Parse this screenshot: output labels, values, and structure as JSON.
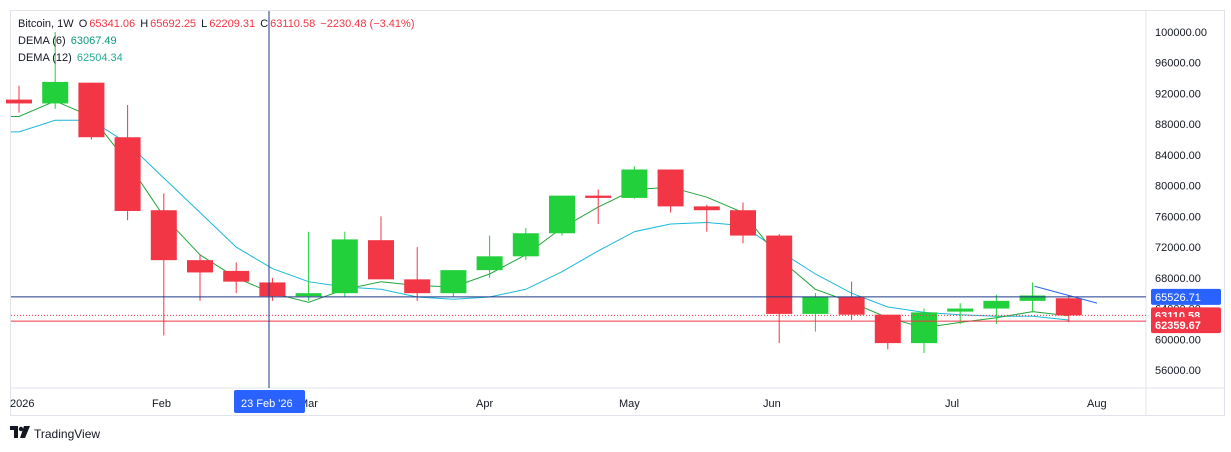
{
  "legend": {
    "symbol": "Bitcoin, 1W",
    "o_label": "O",
    "o_value": "65341.06",
    "h_label": "H",
    "h_value": "65692.25",
    "l_label": "L",
    "l_value": "62209.31",
    "c_label": "C",
    "c_value": "63110.58",
    "change": "−2230.48 (−3.41%)",
    "dema6_label": "DEMA (6)",
    "dema6_value": "63067.49",
    "dema12_label": "DEMA (12)",
    "dema12_value": "62504.34"
  },
  "crosshair": {
    "date_label": "23 Feb '26",
    "price_label": "65526.71",
    "price": 65526.71
  },
  "price_tags": [
    {
      "label": "63110.58",
      "price": 63110.58,
      "color": "#f23645"
    },
    {
      "label": "62359.67",
      "price": 62359.67,
      "color": "#f23645"
    }
  ],
  "footer": {
    "brand": "TradingView",
    "logo": "tv-logo-icon"
  },
  "colors": {
    "up": "#22d03b",
    "down": "#f23645",
    "dema6": "#22a53a",
    "dema12": "#1ab8d8",
    "crosshair": "#2962ff"
  },
  "chart_data": {
    "type": "candlestick",
    "title": "Bitcoin, 1W",
    "ylim": [
      53000,
      103000
    ],
    "yticks": [
      "100000.00",
      "96000.00",
      "92000.00",
      "88000.00",
      "84000.00",
      "80000.00",
      "76000.00",
      "72000.00",
      "68000.00",
      "64000.00",
      "60000.00",
      "56000.00"
    ],
    "xticks": [
      "2026",
      "Feb",
      "Mar",
      "Apr",
      "May",
      "Jun",
      "Jul",
      "Aug"
    ],
    "candles": [
      {
        "o": 91200,
        "h": 93000,
        "l": 89500,
        "c": 90700
      },
      {
        "o": 90700,
        "h": 100000,
        "l": 90000,
        "c": 93500
      },
      {
        "o": 93400,
        "h": 93400,
        "l": 86000,
        "c": 86300
      },
      {
        "o": 86300,
        "h": 90500,
        "l": 75500,
        "c": 76700
      },
      {
        "o": 76800,
        "h": 79000,
        "l": 60500,
        "c": 70300
      },
      {
        "o": 70300,
        "h": 71000,
        "l": 65000,
        "c": 68700
      },
      {
        "o": 68900,
        "h": 70000,
        "l": 66000,
        "c": 67500
      },
      {
        "o": 67400,
        "h": 68000,
        "l": 65000,
        "c": 65600
      },
      {
        "o": 65600,
        "h": 74000,
        "l": 65000,
        "c": 66000
      },
      {
        "o": 66000,
        "h": 74000,
        "l": 65500,
        "c": 73000
      },
      {
        "o": 72900,
        "h": 76000,
        "l": 67800,
        "c": 67800
      },
      {
        "o": 67800,
        "h": 72000,
        "l": 65000,
        "c": 66000
      },
      {
        "o": 66000,
        "h": 69000,
        "l": 65500,
        "c": 69000
      },
      {
        "o": 69000,
        "h": 73500,
        "l": 68000,
        "c": 70800
      },
      {
        "o": 70800,
        "h": 74500,
        "l": 70300,
        "c": 73800
      },
      {
        "o": 73800,
        "h": 78500,
        "l": 73500,
        "c": 78700
      },
      {
        "o": 78700,
        "h": 79500,
        "l": 75000,
        "c": 78400
      },
      {
        "o": 78400,
        "h": 82500,
        "l": 78300,
        "c": 82100
      },
      {
        "o": 82100,
        "h": 82100,
        "l": 76500,
        "c": 77300
      },
      {
        "o": 77300,
        "h": 77500,
        "l": 74000,
        "c": 76800
      },
      {
        "o": 76800,
        "h": 77800,
        "l": 72500,
        "c": 73500
      },
      {
        "o": 73500,
        "h": 73700,
        "l": 59500,
        "c": 63300
      },
      {
        "o": 63300,
        "h": 66000,
        "l": 61000,
        "c": 65500
      },
      {
        "o": 65500,
        "h": 67500,
        "l": 62500,
        "c": 63200
      },
      {
        "o": 63200,
        "h": 63200,
        "l": 58700,
        "c": 59500
      },
      {
        "o": 59500,
        "h": 64000,
        "l": 58200,
        "c": 63500
      },
      {
        "o": 63600,
        "h": 64700,
        "l": 62000,
        "c": 64000
      },
      {
        "o": 64000,
        "h": 65800,
        "l": 62000,
        "c": 65000
      },
      {
        "o": 65000,
        "h": 67400,
        "l": 63500,
        "c": 65700
      },
      {
        "o": 65341.06,
        "h": 65692.25,
        "l": 62209.31,
        "c": 63110.58
      }
    ],
    "dema6": [
      89000,
      91000,
      89000,
      83000,
      76000,
      71000,
      68000,
      66000,
      64800,
      66500,
      67500,
      67000,
      66800,
      68500,
      71000,
      74500,
      77200,
      79500,
      79800,
      78500,
      76500,
      70500,
      66500,
      64800,
      62800,
      61500,
      62200,
      62800,
      63600,
      63067.49
    ],
    "dema12": [
      87000,
      88500,
      88500,
      85500,
      81000,
      76500,
      72000,
      69200,
      67500,
      66800,
      66500,
      65500,
      65200,
      65500,
      66500,
      68800,
      71500,
      74000,
      75000,
      75200,
      74800,
      71500,
      68500,
      66000,
      64200,
      63500,
      63200,
      63000,
      63000,
      62504.34
    ],
    "projection_line": [
      66900,
      64700
    ]
  }
}
